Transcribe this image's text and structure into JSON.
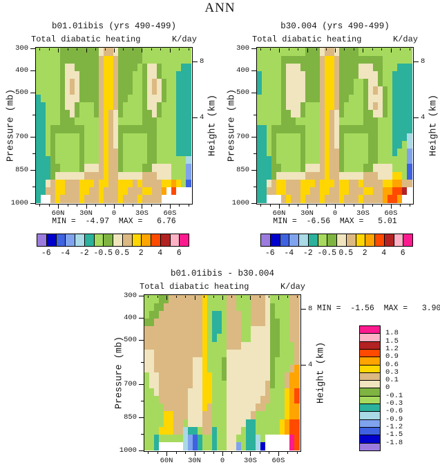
{
  "title": "ANN",
  "axes": {
    "pressure_label": "Pressure (mb)",
    "height_label": "Height (km)"
  },
  "palette": {
    "colors": {
      "0": "#9B7CDE",
      "1": "#0000CC",
      "2": "#3E62E0",
      "3": "#7FA3ED",
      "4": "#A9DAE6",
      "5": "#2BB19C",
      "6": "#A6DA5E",
      "7": "#7FB442",
      "8": "#F0E5BE",
      "9": "#DCB983",
      "a": "#FFD600",
      "b": "#FFA400",
      "c": "#FF4A00",
      "d": "#B22222",
      "e": "#FFB2C5",
      "f": "#FB1B8F",
      "w": "#FFFFFF"
    },
    "main_bar_keys": "0123456789abcdef",
    "diff_bar_keys": "fedcba9876543210"
  },
  "colorbar_main": {
    "labels": [
      "-6",
      "-4",
      "-2",
      "-0.5",
      "0.5",
      "2",
      "4",
      "6"
    ],
    "boundary_indices": [
      1,
      3,
      5,
      7,
      9,
      11,
      13,
      15
    ]
  },
  "colorbar_diff": {
    "labels": [
      "1.8",
      "1.5",
      "1.2",
      "0.9",
      "0.6",
      "0.3",
      "0.1",
      "0",
      "-0.1",
      "-0.3",
      "-0.6",
      "-0.9",
      "-1.2",
      "-1.5",
      "-1.8"
    ]
  },
  "chart_data": [
    {
      "type": "filled-contour",
      "title": "b01.01ibis (yrs 490-499)",
      "field_label": "Total diabatic heating",
      "units_label": "K/day",
      "min": -4.97,
      "max": 6.76,
      "stats_text": "MIN =  -4.97  MAX =   6.76",
      "x_tick_labels": [
        "60N",
        "30N",
        "0",
        "30S",
        "60S"
      ],
      "x_tick_lats": [
        60,
        30,
        0,
        -30,
        -60
      ],
      "y_tick_values": [
        300,
        400,
        500,
        700,
        850,
        1000
      ],
      "y_minor_ticks": [
        600,
        775,
        925
      ],
      "height_tick_labels": [
        "8",
        "4"
      ],
      "levels": [
        -6,
        -5,
        -4,
        -3,
        -2,
        -1,
        -0.5,
        0,
        0.5,
        1,
        2,
        3,
        4,
        5,
        6
      ],
      "grid_cols": 32,
      "grid_rows": 20,
      "grid": [
        "66666777777778998777776666666666",
        "66666777777779aa9777776666666666",
        "66666788777779aa9777767887666655",
        "66666788877779aa9777667887666555",
        "66666789877779aa9777667898766555",
        "66666789877779aa9777667898766555",
        "56666788877779aa9776667888766555",
        "55666788766679aa9766667887666555",
        "55666778766679a98766667787666555",
        "55666777666669a98666667776666555",
        "55677777776669a98777777776666555",
        "55676666676669a98766666776666555",
        "55676666676669a98766666776666555",
        "55676666676669a99766666776666555",
        "55576666676669a99766666776666664",
        "55577666678889a99766667788886663",
        "55578888889999a99888889998886663",
        "5589aa999aaa9aa99aaa9a9999aaba62",
        "5599aa999aa99a999aa999aa99bwcwww",
        "5ww9a9999a999a999a999a9999wwwwww"
      ]
    },
    {
      "type": "filled-contour",
      "title": "b30.004 (yrs 490-499)",
      "field_label": "Total diabatic heating",
      "units_label": "K/day",
      "min": -6.56,
      "max": 5.01,
      "stats_text": "MIN =  -6.56  MAX =   5.01",
      "x_tick_labels": [
        "60N",
        "30N",
        "0",
        "30S",
        "60S"
      ],
      "x_tick_lats": [
        60,
        30,
        0,
        -30,
        -60
      ],
      "y_tick_values": [
        300,
        400,
        500,
        700,
        850,
        1000
      ],
      "y_minor_ticks": [
        600,
        775,
        925
      ],
      "height_tick_labels": [
        "8",
        "4"
      ],
      "levels": [
        -6,
        -5,
        -4,
        -3,
        -2,
        -1,
        -0.5,
        0,
        0.5,
        1,
        2,
        3,
        4,
        5,
        6
      ],
      "grid_cols": 32,
      "grid_rows": 20,
      "grid": [
        "66666666667778998777766666666666",
        "66666777777779aa9777777777666666",
        "66666788877779aa9777788877666555",
        "56666788887779aa9777788887665555",
        "56666788887779aa9777667887665555",
        "56666788887779aa9777667898765555",
        "66666788887779aa9776667888765555",
        "66666788876669aa9766667898765555",
        "66666778876669a98766667788765555",
        "66666777666669a98666667776665555",
        "55677777776669a98777777776665555",
        "55676666676669a98766666776665554",
        "55676666676669a98766666776665564",
        "55676666676669a99766666776665663",
        "55576666676669a99766666776666663",
        "55577666678889a99766667788886662",
        "55578888889999a9988888999888aa62",
        "5589aa999aaa9aaa9aa99a9999aabb99",
        "5599aa999aa99aa99aa999aa99bbccdw",
        "55www9a99a999a999a999a9999bccbww"
      ]
    },
    {
      "type": "filled-contour-difference",
      "title": "b01.01ibis - b30.004",
      "field_label": "Total diabatic heating",
      "units_label": "K/day",
      "min": -1.56,
      "max": 3.9,
      "stats_text": "MIN =  -1.56  MAX =   3.90",
      "x_tick_labels": [
        "60N",
        "30N",
        "0",
        "30S",
        "60S"
      ],
      "x_tick_lats": [
        60,
        30,
        0,
        -30,
        -60
      ],
      "y_tick_values": [
        300,
        400,
        500,
        700,
        850,
        1000
      ],
      "y_minor_ticks": [
        600,
        775,
        925
      ],
      "height_tick_labels": [
        "8",
        "4"
      ],
      "levels": [
        -1.8,
        -1.5,
        -1.2,
        -0.9,
        -0.6,
        -0.3,
        -0.1,
        0,
        0.1,
        0.3,
        0.6,
        0.9,
        1.2,
        1.5,
        1.8
      ],
      "grid_cols": 32,
      "grid_rows": 20,
      "grid": [
        "666779999999a6666996669998666699",
        "667799999999a6666996669998766699",
        "677999999999a6556999669998766699",
        "779999999999a6556999669998776699",
        "999999999999a6556999668888776699",
        "999999999999a6566999668888776699",
        "999999999999a6666999888888776669",
        "889999999999a6666888888888776669",
        "889999999988a6667888888888766669",
        "889999999988a666788888888876669b",
        "688999999988aa6678888888887669bb",
        "688999999988aa6668888888897669bb",
        "668999999888aa666888888889666abc",
        "666999999888aa666888888899666abc",
        "666699999888a9666888888996666abb",
        "6666aa99988899666888889666666abb",
        "6666aa9968889966688885566666abcc",
        "666aaa9945569956688865566666abcc",
        "6656666643256656688665546wwwwwfc",
        "665wwwww43256656688365541wwwwwfc"
      ]
    }
  ]
}
